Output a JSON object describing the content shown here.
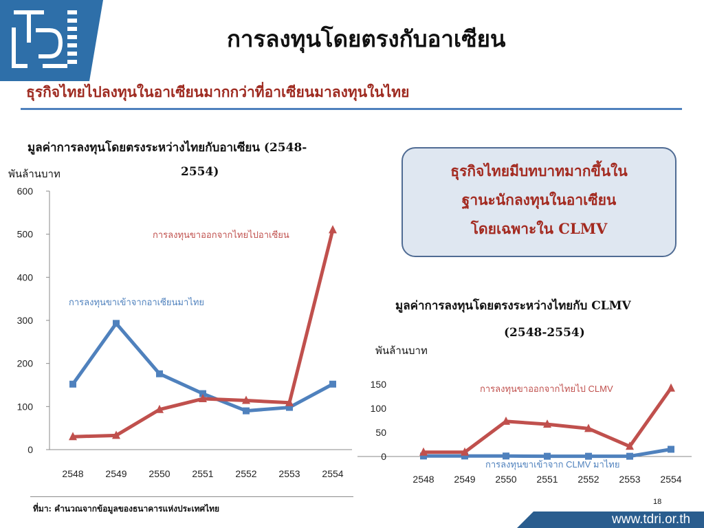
{
  "header": {
    "title": "การลงทุนโดยตรงกับอาเซียน",
    "subtitle": "ธุรกิจไทยไปลงทุนในอาเซียนมากกว่าที่อาเซียนมาลงทุนในไทย"
  },
  "callout": {
    "line1": "ธุรกิจไทยมีบทบาทมากขึ้นใน",
    "line2": "ฐานะนักลงทุนในอาเซียน",
    "line3": "โดยเฉพาะใน CLMV"
  },
  "footer": {
    "source": "ที่มา: คำนวณจากข้อมูลของธนาคารแห่งประเทศไทย",
    "page_number": "18",
    "website": "www.tdri.or.th"
  },
  "colors": {
    "blue": "#4f81bd",
    "red": "#c0504d",
    "title_red": "#9e2a20",
    "panel_blue": "#2e6fa9"
  },
  "chart_data": [
    {
      "type": "line",
      "title_line1": "มูลค่าการลงทุนโดยตรงระหว่างไทยกับอาเซียน (2548-",
      "title_line2": "2554)",
      "unit_label": "พันล้านบาท",
      "categories": [
        "2548",
        "2549",
        "2550",
        "2551",
        "2552",
        "2553",
        "2554"
      ],
      "ylim": [
        0,
        600
      ],
      "yticks": [
        "0",
        "100",
        "200",
        "300",
        "400",
        "500",
        "600"
      ],
      "series": [
        {
          "name": "การลงทุนขาเข้าจากอาเซียนมาไทย",
          "color": "#4f81bd",
          "marker": "square",
          "values": [
            152,
            293,
            176,
            130,
            90,
            98,
            152
          ]
        },
        {
          "name": "การลงทุนขาออกจากไทยไปอาเซียน",
          "color": "#c0504d",
          "marker": "triangle",
          "values": [
            30,
            33,
            93,
            118,
            114,
            109,
            510
          ]
        }
      ]
    },
    {
      "type": "line",
      "title_line1": "มูลค่าการลงทุนโดยตรงระหว่างไทยกับ CLMV",
      "title_line2": "(2548-2554)",
      "unit_label": "พันล้านบาท",
      "categories": [
        "2548",
        "2549",
        "2550",
        "2551",
        "2552",
        "2553",
        "2554"
      ],
      "ylim": [
        0,
        150
      ],
      "yticks": [
        "0",
        "50",
        "100",
        "150"
      ],
      "series": [
        {
          "name": "การลงทุนขาเข้าจาก CLMV มาไทย",
          "color": "#4f81bd",
          "marker": "square",
          "values": [
            1,
            1,
            1,
            0.5,
            0.5,
            0.5,
            15
          ]
        },
        {
          "name": "การลงทุนขาออกจากไทยไป CLMV",
          "color": "#c0504d",
          "marker": "triangle",
          "values": [
            9,
            9,
            73,
            67,
            58,
            21,
            142
          ]
        }
      ]
    }
  ]
}
